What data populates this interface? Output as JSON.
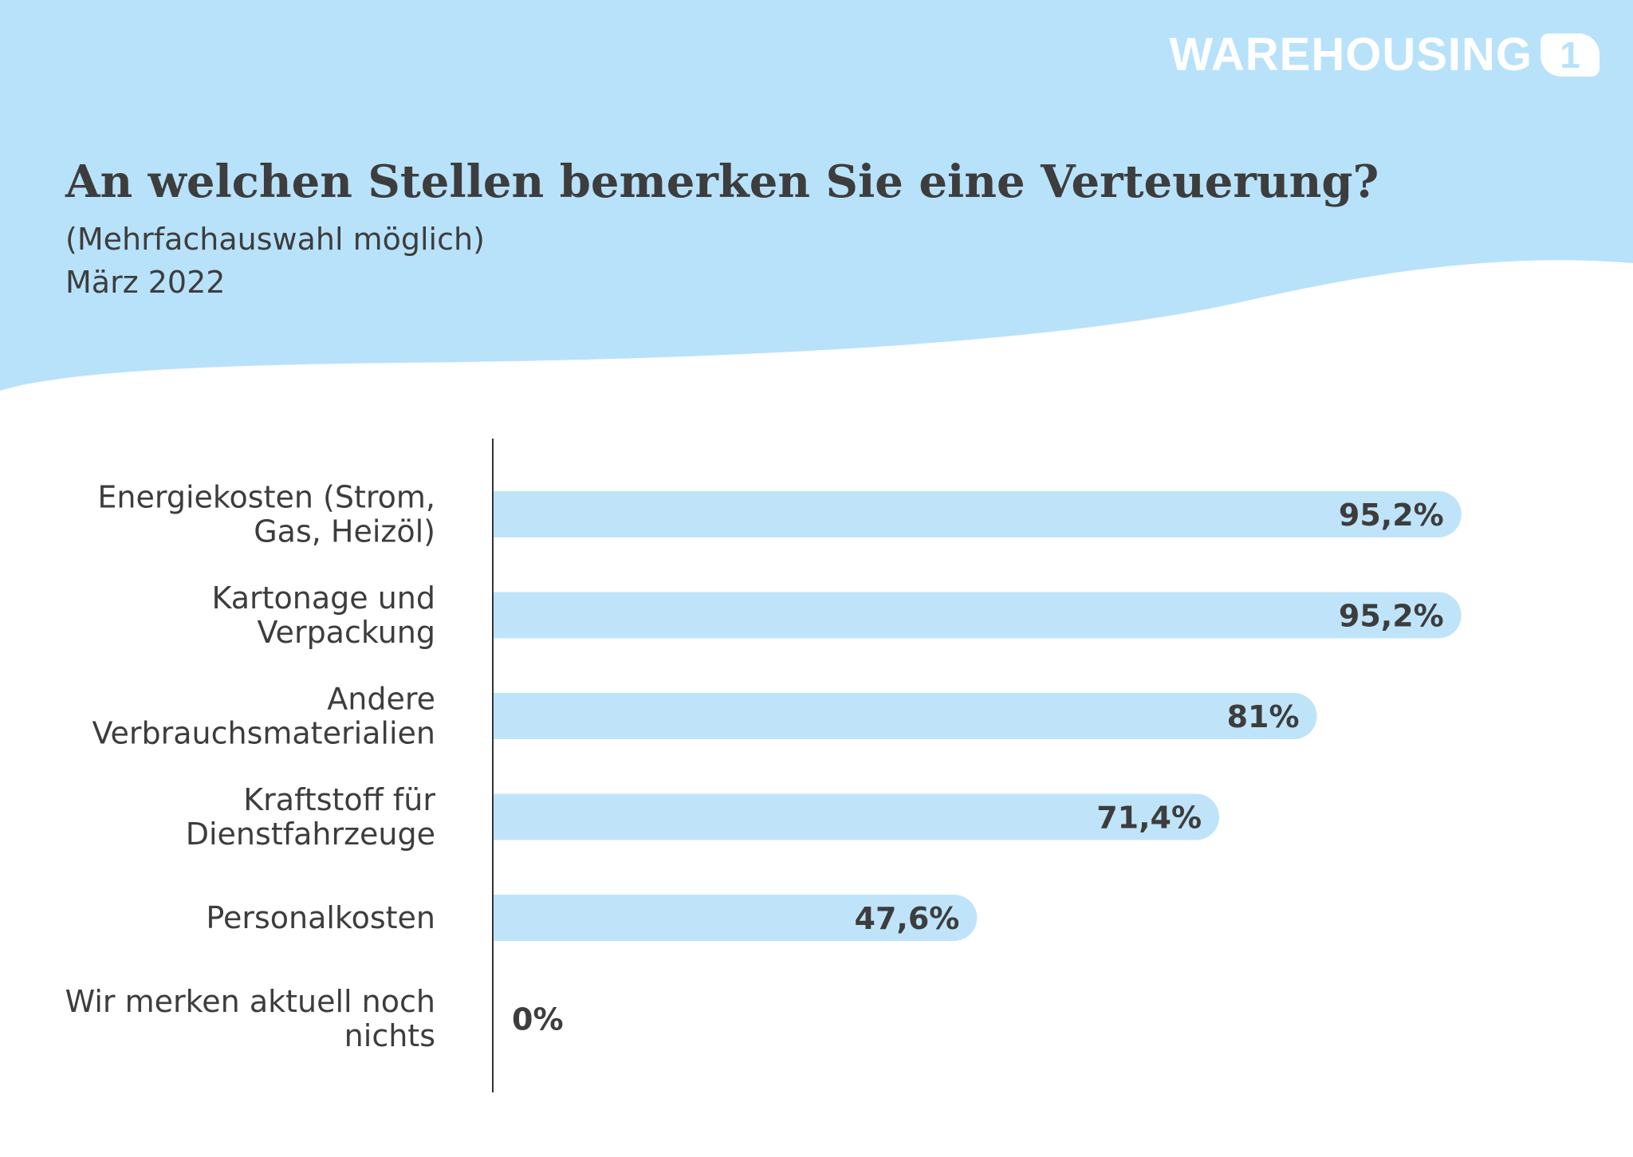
{
  "logo": {
    "text": "WAREHOUSING",
    "badge": "1"
  },
  "header": {
    "title": "An welchen Stellen bemerken Sie eine Verteuerung?",
    "subtitle": "(Mehrfachauswahl möglich)",
    "date": "März 2022"
  },
  "colors": {
    "background_wave": "#b8e2fa",
    "bar": "#bfe4f9",
    "axis": "#333333",
    "text": "#3d3d3d",
    "logo": "#ffffff"
  },
  "chart_data": {
    "type": "bar",
    "orientation": "horizontal",
    "categories": [
      [
        "Energiekosten (Strom,",
        "Gas, Heizöl)"
      ],
      [
        "Kartonage und",
        "Verpackung"
      ],
      [
        "Andere",
        "Verbrauchsmaterialien"
      ],
      [
        "Kraftstoff für",
        "Dienstfahrzeuge"
      ],
      [
        "Personalkosten"
      ],
      [
        "Wir merken aktuell noch",
        "nichts"
      ]
    ],
    "values": [
      95.2,
      95.2,
      81,
      71.4,
      47.6,
      0
    ],
    "value_labels": [
      "95,2%",
      "95,2%",
      "81%",
      "71,4%",
      "47,6%",
      "0%"
    ],
    "xlim": [
      0,
      100
    ],
    "unit": "%",
    "grid": false,
    "legend": false
  }
}
